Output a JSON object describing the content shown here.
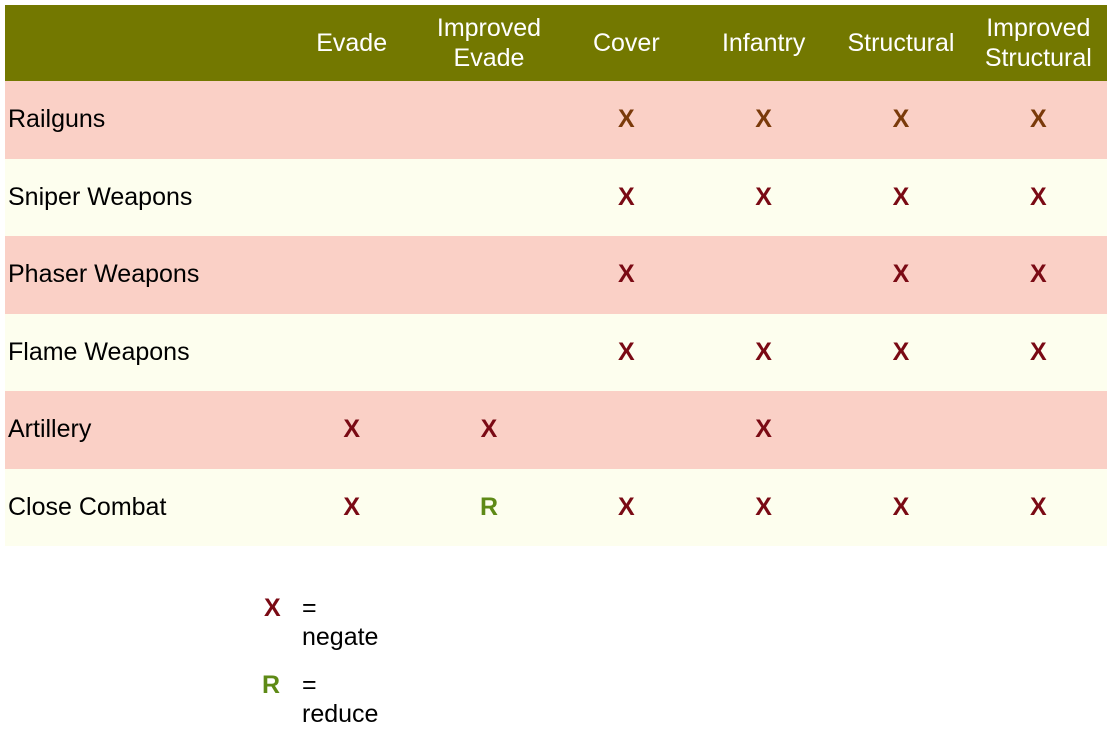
{
  "columns": [
    "Evade",
    "Improved\nEvade",
    "Cover",
    "Infantry",
    "Structural",
    "Improved\nStructural"
  ],
  "rows": [
    {
      "label": "Railguns",
      "cells": [
        "",
        "",
        "X",
        "X",
        "X",
        "X"
      ],
      "style": "pink"
    },
    {
      "label": "Sniper Weapons",
      "cells": [
        "",
        "",
        "X",
        "X",
        "X",
        "X"
      ],
      "style": "cream"
    },
    {
      "label": "Phaser Weapons",
      "cells": [
        "",
        "",
        "X",
        "",
        "X",
        "X"
      ],
      "style": "pink"
    },
    {
      "label": "Flame Weapons",
      "cells": [
        "",
        "",
        "X",
        "X",
        "X",
        "X"
      ],
      "style": "cream"
    },
    {
      "label": "Artillery",
      "cells": [
        "X",
        "X",
        "",
        "X",
        "",
        ""
      ],
      "style": "pink"
    },
    {
      "label": "Close Combat",
      "cells": [
        "X",
        "R",
        "X",
        "X",
        "X",
        "X"
      ],
      "style": "cream"
    }
  ],
  "legend": [
    {
      "symbol": "X",
      "text": "= negate"
    },
    {
      "symbol": "R",
      "text": "= reduce"
    }
  ],
  "colors": {
    "header_bg": "#737800",
    "row_pink": "#fad0c6",
    "row_cream": "#fdfeee",
    "x_mark_on_pink_first": "#7a3a0a",
    "x_mark": "#7a0a14",
    "r_mark": "#5e8a16"
  }
}
